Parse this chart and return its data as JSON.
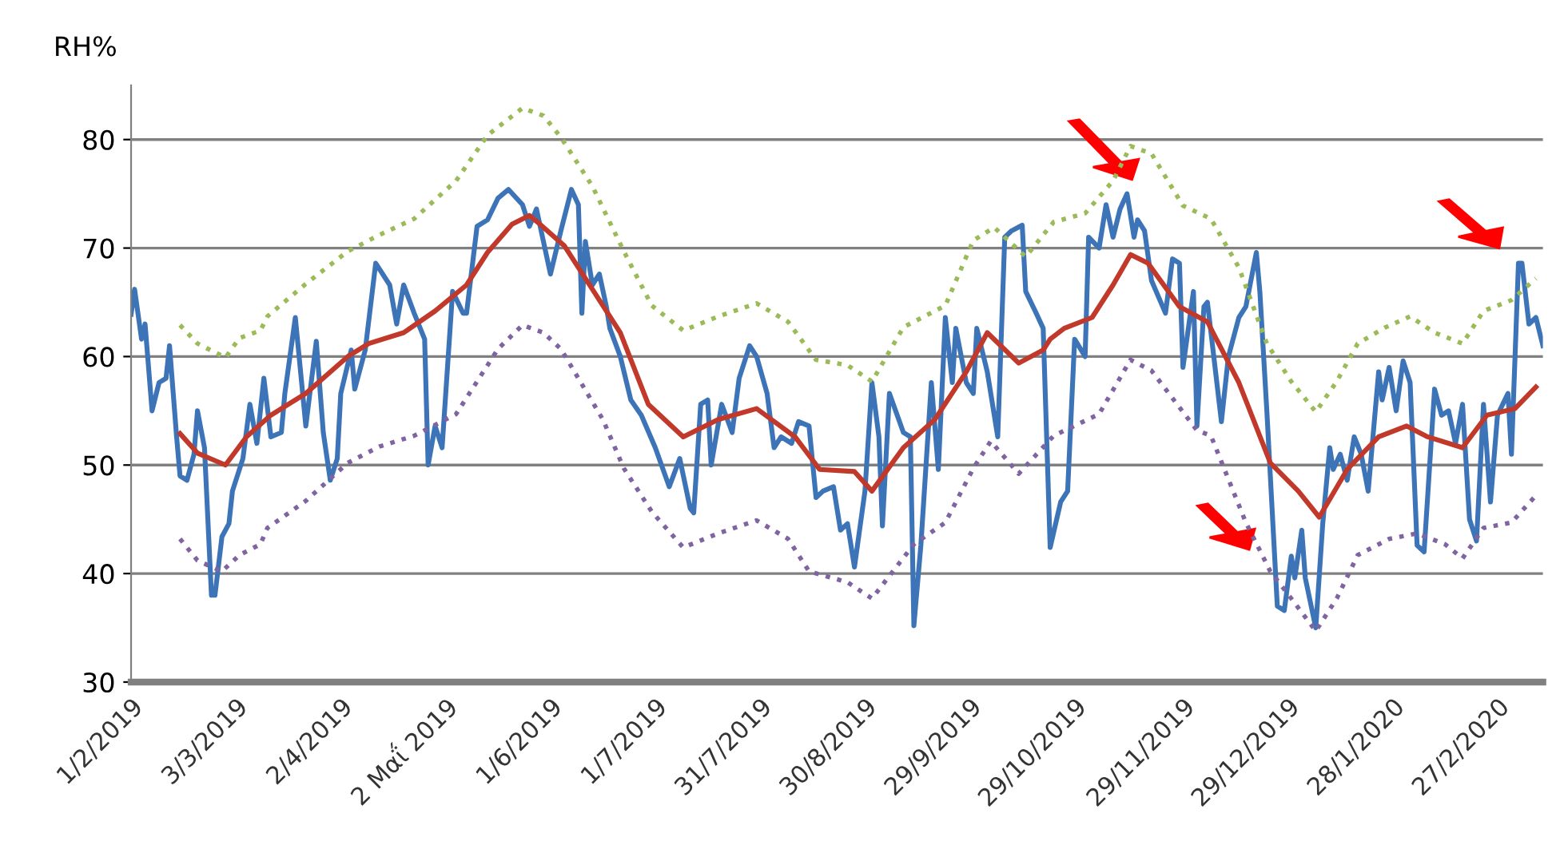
{
  "chart_data": {
    "type": "line",
    "ylabel": "RH%",
    "xlim": [
      "2019-02-01",
      "2020-03-11"
    ],
    "ylim": [
      30,
      85
    ],
    "yticks": [
      30,
      40,
      50,
      60,
      70,
      80
    ],
    "grid": "y",
    "legend": false,
    "marker": "none",
    "xticks": [
      {
        "value": "2019-02-01",
        "label": "1/2/2019"
      },
      {
        "value": "2019-03-03",
        "label": "3/3/2019"
      },
      {
        "value": "2019-04-02",
        "label": "2/4/2019"
      },
      {
        "value": "2019-05-02",
        "label": "2 Μαΐ 2019"
      },
      {
        "value": "2019-06-01",
        "label": "1/6/2019"
      },
      {
        "value": "2019-07-01",
        "label": "1/7/2019"
      },
      {
        "value": "2019-07-31",
        "label": "31/7/2019"
      },
      {
        "value": "2019-08-30",
        "label": "30/8/2019"
      },
      {
        "value": "2019-09-29",
        "label": "29/9/2019"
      },
      {
        "value": "2019-10-29",
        "label": "29/10/2019"
      },
      {
        "value": "2019-11-29",
        "label": "29/11/2019"
      },
      {
        "value": "2019-12-29",
        "label": "29/12/2019"
      },
      {
        "value": "2020-01-28",
        "label": "28/1/2020"
      },
      {
        "value": "2020-02-27",
        "label": "27/2/2020"
      }
    ],
    "series": [
      {
        "color": "#3d74b8",
        "line_style": "solid",
        "x": [
          "2019-02-01",
          "2019-02-02",
          "2019-02-04",
          "2019-02-05",
          "2019-02-07",
          "2019-02-09",
          "2019-02-11",
          "2019-02-12",
          "2019-02-14",
          "2019-02-15",
          "2019-02-17",
          "2019-02-19",
          "2019-02-20",
          "2019-02-22",
          "2019-02-24",
          "2019-02-25",
          "2019-02-27",
          "2019-03-01",
          "2019-03-02",
          "2019-03-05",
          "2019-03-07",
          "2019-03-09",
          "2019-03-11",
          "2019-03-13",
          "2019-03-16",
          "2019-03-17",
          "2019-03-20",
          "2019-03-23",
          "2019-03-26",
          "2019-03-28",
          "2019-03-30",
          "2019-04-01",
          "2019-04-02",
          "2019-04-05",
          "2019-04-06",
          "2019-04-09",
          "2019-04-12",
          "2019-04-16",
          "2019-04-18",
          "2019-04-20",
          "2019-04-23",
          "2019-04-26",
          "2019-04-27",
          "2019-04-29",
          "2019-05-01",
          "2019-05-04",
          "2019-05-07",
          "2019-05-08",
          "2019-05-11",
          "2019-05-14",
          "2019-05-17",
          "2019-05-20",
          "2019-05-24",
          "2019-05-26",
          "2019-05-28",
          "2019-06-01",
          "2019-06-04",
          "2019-06-07",
          "2019-06-09",
          "2019-06-10",
          "2019-06-11",
          "2019-06-13",
          "2019-06-15",
          "2019-06-17",
          "2019-06-18",
          "2019-06-21",
          "2019-06-24",
          "2019-06-27",
          "2019-07-01",
          "2019-07-05",
          "2019-07-08",
          "2019-07-11",
          "2019-07-12",
          "2019-07-14",
          "2019-07-16",
          "2019-07-17",
          "2019-07-20",
          "2019-07-23",
          "2019-07-25",
          "2019-07-28",
          "2019-07-30",
          "2019-08-02",
          "2019-08-04",
          "2019-08-06",
          "2019-08-09",
          "2019-08-11",
          "2019-08-14",
          "2019-08-16",
          "2019-08-18",
          "2019-08-21",
          "2019-08-23",
          "2019-08-25",
          "2019-08-27",
          "2019-08-30",
          "2019-09-01",
          "2019-09-03",
          "2019-09-04",
          "2019-09-06",
          "2019-09-10",
          "2019-09-12",
          "2019-09-13",
          "2019-09-15",
          "2019-09-18",
          "2019-09-20",
          "2019-09-22",
          "2019-09-24",
          "2019-09-25",
          "2019-09-28",
          "2019-09-30",
          "2019-10-01",
          "2019-10-04",
          "2019-10-07",
          "2019-10-09",
          "2019-10-11",
          "2019-10-14",
          "2019-10-15",
          "2019-10-18",
          "2019-10-20",
          "2019-10-22",
          "2019-10-25",
          "2019-10-27",
          "2019-10-29",
          "2019-11-01",
          "2019-11-02",
          "2019-11-05",
          "2019-11-07",
          "2019-11-09",
          "2019-11-11",
          "2019-11-13",
          "2019-11-15",
          "2019-11-16",
          "2019-11-18",
          "2019-11-20",
          "2019-11-24",
          "2019-11-26",
          "2019-11-28",
          "2019-11-29",
          "2019-12-02",
          "2019-12-03",
          "2019-12-05",
          "2019-12-06",
          "2019-12-10",
          "2019-12-12",
          "2019-12-15",
          "2019-12-17",
          "2019-12-20",
          "2019-12-21",
          "2019-12-23",
          "2019-12-26",
          "2019-12-28",
          "2019-12-30",
          "2019-12-31",
          "2020-01-02",
          "2020-01-03",
          "2020-01-06",
          "2020-01-08",
          "2020-01-10",
          "2020-01-11",
          "2020-01-13",
          "2020-01-15",
          "2020-01-17",
          "2020-01-19",
          "2020-01-21",
          "2020-01-24",
          "2020-01-25",
          "2020-01-27",
          "2020-01-29",
          "2020-01-31",
          "2020-02-02",
          "2020-02-04",
          "2020-02-06",
          "2020-02-09",
          "2020-02-11",
          "2020-02-13",
          "2020-02-15",
          "2020-02-17",
          "2020-02-19",
          "2020-02-21",
          "2020-02-23",
          "2020-02-25",
          "2020-02-27",
          "2020-03-01",
          "2020-03-02",
          "2020-03-04",
          "2020-03-05",
          "2020-03-07",
          "2020-03-09",
          "2020-03-11"
        ],
        "values": [
          63.9,
          66.2,
          61.6,
          63,
          55,
          57.6,
          58,
          61,
          52.7,
          49,
          48.6,
          51,
          55,
          51.6,
          38,
          38,
          43.4,
          44.6,
          47.6,
          50.6,
          55.6,
          52,
          58,
          52.6,
          53,
          56.6,
          63.6,
          53.6,
          61.4,
          53,
          48.6,
          50.6,
          56.6,
          60.6,
          57,
          60.6,
          68.6,
          66.6,
          63,
          66.6,
          64,
          61.6,
          50,
          53.6,
          51.6,
          66,
          64,
          64,
          72,
          72.6,
          74.6,
          75.4,
          74,
          72,
          73.6,
          67.6,
          71.6,
          75.4,
          74,
          64,
          70.6,
          66.6,
          67.6,
          64.6,
          62.6,
          60,
          56,
          54.6,
          51.6,
          48,
          50.6,
          46,
          45.6,
          55.6,
          56,
          50,
          55.6,
          53,
          58,
          61,
          60,
          56.6,
          51.6,
          52.6,
          52,
          54,
          53.6,
          47,
          47.6,
          48,
          44,
          44.6,
          40.6,
          47.6,
          57.6,
          52.6,
          44.4,
          56.6,
          53,
          52.6,
          35.2,
          42.6,
          57.6,
          49.6,
          63.6,
          57.6,
          62.6,
          57.6,
          56.6,
          62.6,
          58.6,
          52.6,
          71,
          71.6,
          72.1,
          66,
          64,
          62.6,
          42.4,
          46.6,
          47.6,
          61.6,
          60,
          71,
          70,
          74,
          71,
          73.6,
          75,
          71,
          72.6,
          71.6,
          67,
          64,
          69,
          68.6,
          59,
          66,
          53.6,
          64.6,
          65,
          54,
          60,
          63.6,
          64.6,
          69.6,
          66,
          55,
          37,
          36.6,
          41.6,
          39.6,
          44,
          39.6,
          35,
          44.6,
          51.6,
          49.6,
          51,
          48.6,
          52.6,
          51,
          47.6,
          58.6,
          56,
          59,
          55,
          59.6,
          57.6,
          42.6,
          42,
          57,
          54.6,
          55,
          52,
          55.6,
          45,
          43,
          55.6,
          46.6,
          54.6,
          56.6,
          51,
          68.6,
          68.6,
          63,
          63.6,
          61
        ]
      },
      {
        "color": "#c0392b",
        "line_style": "solid",
        "x": [
          "2019-02-15",
          "2019-02-20",
          "2019-02-28",
          "2019-03-06",
          "2019-03-13",
          "2019-03-23",
          "2019-04-04",
          "2019-04-10",
          "2019-04-20",
          "2019-04-29",
          "2019-05-08",
          "2019-05-14",
          "2019-05-21",
          "2019-05-26",
          "2019-05-29",
          "2019-06-05",
          "2019-06-13",
          "2019-06-21",
          "2019-06-29",
          "2019-07-09",
          "2019-07-19",
          "2019-07-30",
          "2019-08-10",
          "2019-08-17",
          "2019-08-27",
          "2019-09-01",
          "2019-09-10",
          "2019-09-19",
          "2019-09-28",
          "2019-10-04",
          "2019-10-13",
          "2019-10-20",
          "2019-10-22",
          "2019-10-26",
          "2019-11-03",
          "2019-11-09",
          "2019-11-14",
          "2019-11-19",
          "2019-11-28",
          "2019-12-06",
          "2019-12-15",
          "2019-12-24",
          "2020-01-01",
          "2020-01-07",
          "2020-01-15",
          "2020-01-24",
          "2020-02-01",
          "2020-02-07",
          "2020-02-17",
          "2020-02-24",
          "2020-03-03",
          "2020-03-09"
        ],
        "values": [
          52.9,
          51.1,
          50,
          52.6,
          54.6,
          56.6,
          60,
          61.2,
          62.2,
          64.2,
          66.6,
          69.6,
          72.2,
          73,
          72.2,
          70.2,
          66.2,
          62.2,
          55.6,
          52.6,
          54.2,
          55.2,
          52.6,
          49.6,
          49.4,
          47.6,
          51.6,
          54.2,
          58.6,
          62.2,
          59.4,
          60.6,
          61.6,
          62.6,
          63.6,
          66.6,
          69.4,
          68.6,
          64.6,
          63.2,
          57.6,
          50.2,
          47.6,
          45.2,
          49.6,
          52.6,
          53.6,
          52.6,
          51.6,
          54.6,
          55.2,
          57.2
        ]
      },
      {
        "color": "#9bbb59",
        "line_style": "dotted",
        "x": [
          "2019-02-15",
          "2019-02-20",
          "2019-02-28",
          "2019-03-04",
          "2019-03-10",
          "2019-03-12",
          "2019-03-23",
          "2019-04-04",
          "2019-04-13",
          "2019-04-23",
          "2019-05-05",
          "2019-05-14",
          "2019-05-24",
          "2019-05-30",
          "2019-06-04",
          "2019-06-13",
          "2019-06-22",
          "2019-06-30",
          "2019-07-09",
          "2019-07-19",
          "2019-07-30",
          "2019-08-08",
          "2019-08-16",
          "2019-08-25",
          "2019-09-01",
          "2019-09-10",
          "2019-09-22",
          "2019-09-30",
          "2019-10-06",
          "2019-10-15",
          "2019-10-23",
          "2019-11-01",
          "2019-11-09",
          "2019-11-14",
          "2019-11-20",
          "2019-11-29",
          "2019-12-07",
          "2019-12-15",
          "2019-12-23",
          "2019-12-30",
          "2020-01-06",
          "2020-01-12",
          "2020-01-18",
          "2020-01-26",
          "2020-02-02",
          "2020-02-09",
          "2020-02-17",
          "2020-02-23",
          "2020-03-02",
          "2020-03-09"
        ],
        "values": [
          62.9,
          61.2,
          59.9,
          61.7,
          62.4,
          63.7,
          66.7,
          69.7,
          71.2,
          72.7,
          76.2,
          80.4,
          82.9,
          82.2,
          80.2,
          75.7,
          69.7,
          64.7,
          62.4,
          63.7,
          64.9,
          63.2,
          59.7,
          59.2,
          57.7,
          62.7,
          64.7,
          70.7,
          71.9,
          69.2,
          72.4,
          73.2,
          76.2,
          79.4,
          78.7,
          73.9,
          72.7,
          68.2,
          61.2,
          57.7,
          54.9,
          57.7,
          61.2,
          62.7,
          63.7,
          62.2,
          61.2,
          64.2,
          65.2,
          67.2
        ]
      },
      {
        "color": "#8064a2",
        "line_style": "dotted",
        "x": [
          "2019-02-15",
          "2019-02-20",
          "2019-02-27",
          "2019-03-04",
          "2019-03-10",
          "2019-03-12",
          "2019-03-23",
          "2019-04-04",
          "2019-04-13",
          "2019-04-23",
          "2019-05-05",
          "2019-05-11",
          "2019-05-17",
          "2019-05-24",
          "2019-05-30",
          "2019-06-04",
          "2019-06-16",
          "2019-06-22",
          "2019-06-30",
          "2019-07-09",
          "2019-07-19",
          "2019-07-30",
          "2019-08-08",
          "2019-08-14",
          "2019-08-25",
          "2019-09-01",
          "2019-09-13",
          "2019-09-22",
          "2019-09-30",
          "2019-10-05",
          "2019-10-13",
          "2019-10-23",
          "2019-11-05",
          "2019-11-14",
          "2019-11-20",
          "2019-12-03",
          "2019-12-07",
          "2019-12-17",
          "2019-12-24",
          "2019-12-30",
          "2020-01-06",
          "2020-01-12",
          "2020-01-18",
          "2020-01-27",
          "2020-02-04",
          "2020-02-12",
          "2020-02-17",
          "2020-02-23",
          "2020-03-02",
          "2020-03-09"
        ],
        "values": [
          43.2,
          41.2,
          40.2,
          41.7,
          42.7,
          44.2,
          46.7,
          50.2,
          51.7,
          52.7,
          54.7,
          57.7,
          60.7,
          62.9,
          62.2,
          60.7,
          54.2,
          49.7,
          45.7,
          42.4,
          43.7,
          44.9,
          43.2,
          40.2,
          39.2,
          37.7,
          42.7,
          44.7,
          49.7,
          52.2,
          49.2,
          52.7,
          54.7,
          59.7,
          58.7,
          53.2,
          52.7,
          44.7,
          40.2,
          37.7,
          34.7,
          37.7,
          41.7,
          43.2,
          43.7,
          42.7,
          41.4,
          44.2,
          44.7,
          47.2
        ]
      }
    ]
  }
}
